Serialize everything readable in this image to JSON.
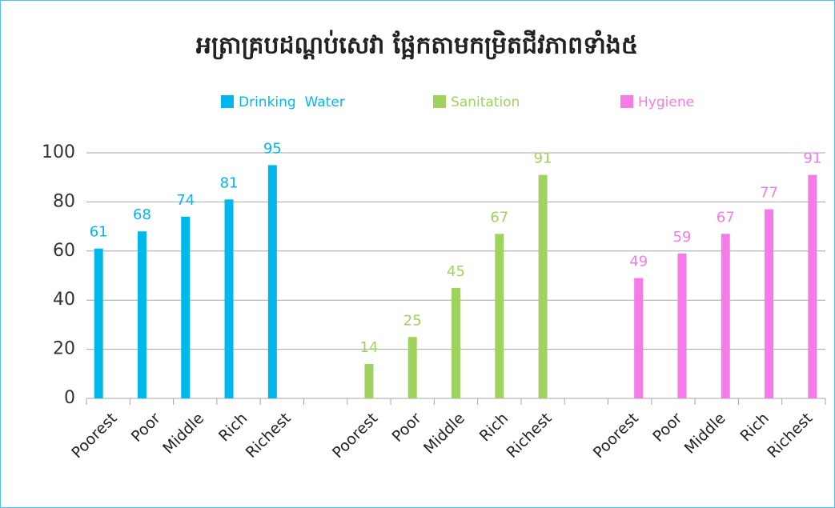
{
  "chart_data": {
    "type": "bar",
    "title": "អត្រាគ្របដណ្ដប់សេវា ផ្អែកតាមកម្រិតជីវភាពទាំង៥",
    "categories": [
      "Poorest",
      "Poor",
      "Middle",
      "Rich",
      "Richest",
      null,
      "Poorest",
      "Poor",
      "Middle",
      "Rich",
      "Richest",
      null,
      "Poorest",
      "Poor",
      "Middle",
      "Rich",
      "Richest"
    ],
    "series": [
      {
        "name": "Drinking  Water",
        "color": "#00b8ec",
        "values": [
          61,
          68,
          74,
          81,
          95,
          null,
          null,
          null,
          null,
          null,
          null,
          null,
          null,
          null,
          null,
          null,
          null
        ]
      },
      {
        "name": "Sanitation",
        "color": "#9fd25e",
        "values": [
          null,
          null,
          null,
          null,
          null,
          null,
          14,
          25,
          45,
          67,
          91,
          null,
          null,
          null,
          null,
          null,
          null
        ]
      },
      {
        "name": "Hygiene",
        "color": "#f57be8",
        "values": [
          null,
          null,
          null,
          null,
          null,
          null,
          null,
          null,
          null,
          null,
          null,
          null,
          49,
          59,
          67,
          77,
          91
        ]
      }
    ],
    "ylim": [
      0,
      100
    ],
    "yticks": [
      0,
      20,
      40,
      60,
      80,
      100
    ],
    "grid": true,
    "legend": "top"
  }
}
